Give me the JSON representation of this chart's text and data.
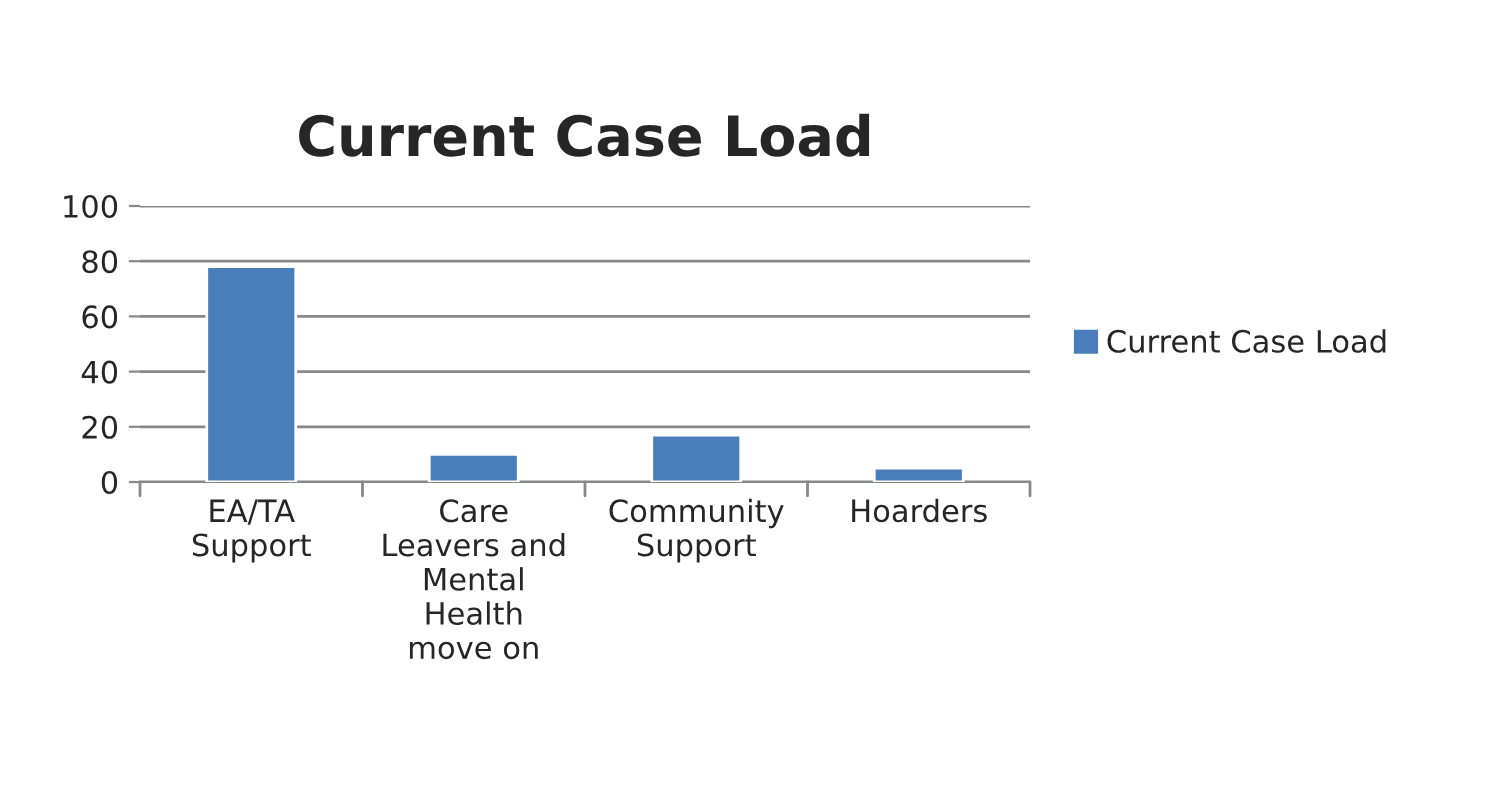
{
  "chart_data": {
    "type": "bar",
    "title": "Current Case Load",
    "categories": [
      "EA/TA\nSupport",
      "Care\nLeavers and\nMental\nHealth\nmove on",
      "Community\nSupport",
      "Hoarders"
    ],
    "series": [
      {
        "name": "Current Case Load",
        "color": "#4a7ebb",
        "values": [
          78,
          10,
          17,
          5
        ]
      }
    ],
    "ylim": [
      0,
      100
    ],
    "yticks": [
      0,
      20,
      40,
      60,
      80,
      100
    ],
    "grid": "y",
    "legend": "right"
  }
}
